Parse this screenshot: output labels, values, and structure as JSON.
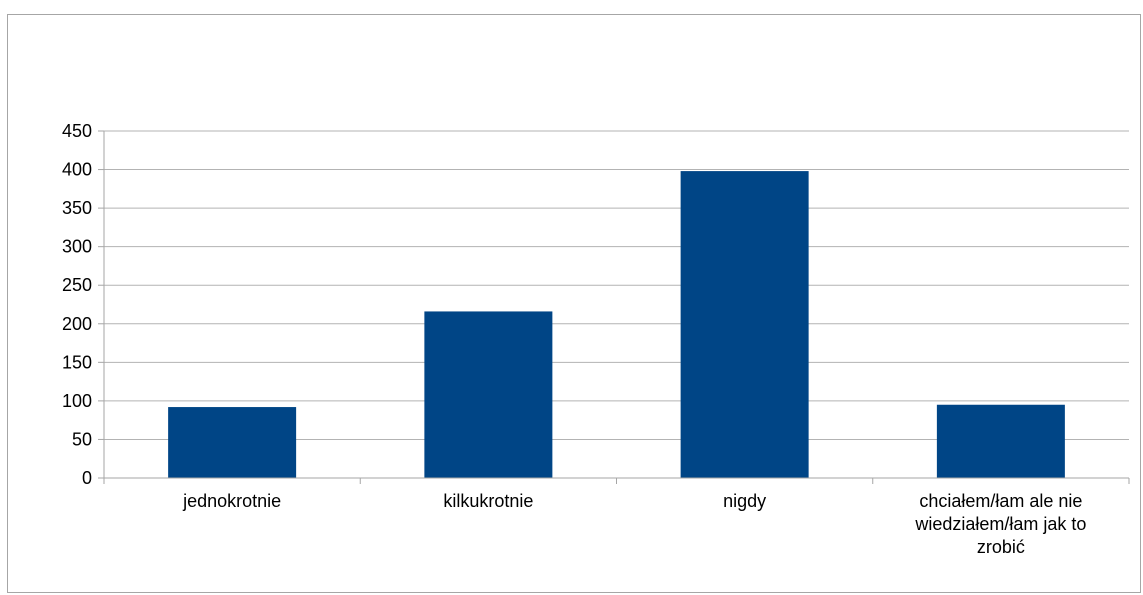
{
  "chart_data": {
    "type": "bar",
    "title": "",
    "xlabel": "",
    "ylabel": "",
    "categories": [
      "jednokrotnie",
      "kilkukrotnie",
      "nigdy",
      "chciałem/łam ale nie wiedziałem/łam jak to zrobić"
    ],
    "category_lines": [
      [
        "jednokrotnie"
      ],
      [
        "kilkukrotnie"
      ],
      [
        "nigdy"
      ],
      [
        "chciałem/łam ale nie",
        "wiedziałem/łam jak to",
        "zrobić"
      ]
    ],
    "values": [
      92,
      216,
      398,
      95
    ],
    "ylim": [
      0,
      450
    ],
    "yticks": [
      0,
      50,
      100,
      150,
      200,
      250,
      300,
      350,
      400,
      450
    ],
    "grid": true,
    "legend": "none",
    "bar_color": "#004586",
    "grid_color": "#b3b3b3",
    "axis_color": "#a6a6a6"
  }
}
